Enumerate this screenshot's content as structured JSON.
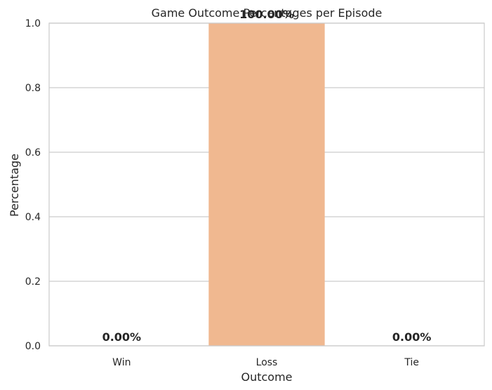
{
  "chart_data": {
    "type": "bar",
    "title": "Game Outcome Percentages per Episode",
    "xlabel": "Outcome",
    "ylabel": "Percentage",
    "categories": [
      "Win",
      "Loss",
      "Tie"
    ],
    "values": [
      0.0,
      1.0,
      0.0
    ],
    "data_labels": [
      "0.00%",
      "100.00%",
      "0.00%"
    ],
    "bar_colors": [
      "#f2a49b",
      "#f0b890",
      "#f5c7a6"
    ],
    "ylim": [
      0,
      1
    ],
    "yticks": [
      "0.0",
      "0.2",
      "0.4",
      "0.6",
      "0.8",
      "1.0"
    ],
    "grid": true,
    "grid_color": "#cccccc",
    "background": "#ffffff"
  }
}
